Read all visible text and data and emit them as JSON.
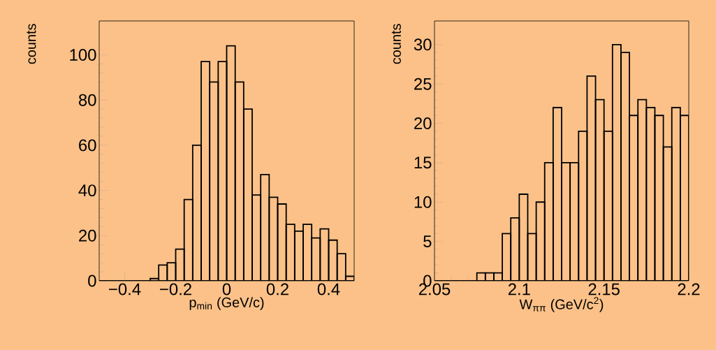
{
  "chart_data": [
    {
      "type": "histogram",
      "xlabel": "p$_{min}$ (GeV/c)",
      "ylabel": "counts",
      "color": "#000000",
      "bins": [
        -0.5,
        -0.4666667,
        -0.4333333,
        -0.4,
        -0.3666667,
        -0.3333333,
        -0.3,
        -0.2666667,
        -0.2333333,
        -0.2,
        -0.1666667,
        -0.1333333,
        -0.1,
        -0.0666667,
        -0.0333333,
        0,
        0.0333333,
        0.0666667,
        0.1,
        0.1333333,
        0.1666667,
        0.2,
        0.2333333,
        0.2666667,
        0.3,
        0.3333333,
        0.3666667,
        0.4,
        0.4333333,
        0.4666667,
        0.5
      ],
      "values": [
        0,
        0,
        0,
        0,
        0,
        0,
        1,
        7,
        8,
        14,
        36,
        60,
        97,
        88,
        97,
        104,
        88,
        76,
        38,
        47,
        37,
        34,
        25,
        22,
        25,
        19,
        23,
        18,
        12,
        2
      ],
      "xlim": [
        -0.5,
        0.5
      ],
      "ylim": [
        0,
        115
      ],
      "xticks": [
        {
          "value": -0.4,
          "label": "−0.4"
        },
        {
          "value": -0.2,
          "label": "−0.2"
        },
        0,
        0.2,
        0.4
      ],
      "yticks": [
        0,
        20,
        40,
        60,
        80,
        100
      ]
    },
    {
      "type": "histogram",
      "xlabel": "W$_{ππ}$ (GeV/c$^{2}$)",
      "ylabel": "counts",
      "color": "#000000",
      "bins": [
        2.05,
        2.055,
        2.06,
        2.065,
        2.07,
        2.075,
        2.08,
        2.085,
        2.09,
        2.095,
        2.1,
        2.105,
        2.11,
        2.115,
        2.12,
        2.125,
        2.13,
        2.135,
        2.14,
        2.145,
        2.15,
        2.155,
        2.16,
        2.165,
        2.17,
        2.175,
        2.18,
        2.185,
        2.19,
        2.195,
        2.2
      ],
      "values": [
        0,
        0,
        0,
        0,
        0,
        1,
        1,
        1,
        6,
        8,
        11,
        6,
        10,
        15,
        22,
        15,
        15,
        19,
        26,
        23,
        19,
        30,
        29,
        21,
        23,
        22,
        21,
        17,
        22,
        21
      ],
      "xlim": [
        2.05,
        2.2
      ],
      "ylim": [
        0,
        33
      ],
      "xticks": [
        2.05,
        2.1,
        2.15,
        2.2
      ],
      "yticks": [
        0,
        5,
        10,
        15,
        20,
        25,
        30
      ]
    }
  ]
}
